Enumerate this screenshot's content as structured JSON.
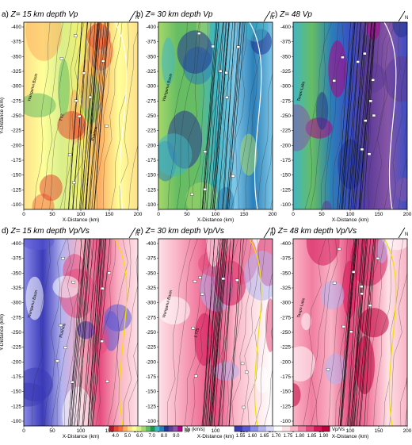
{
  "panels": [
    {
      "id": "a",
      "label": "a)",
      "z_prefix": "Z=",
      "depth": "15 km depth",
      "quantity": "Vp",
      "scheme": "vp",
      "row": 0,
      "col": 0,
      "annotations": [
        "Wanganui Basin",
        "TVZ",
        "Ruahine"
      ]
    },
    {
      "id": "b",
      "label": "b)",
      "z_prefix": "Z=",
      "depth": "30 km depth",
      "quantity": "Vp",
      "scheme": "vp",
      "row": 0,
      "col": 1,
      "annotations": [
        "Wanganui Basin"
      ]
    },
    {
      "id": "c",
      "label": "c)",
      "z_prefix": "Z=",
      "depth": "48",
      "quantity": "Vp",
      "scheme": "vp",
      "row": 0,
      "col": 2,
      "annotations": [
        "Taupo Lake"
      ]
    },
    {
      "id": "d",
      "label": "d)",
      "z_prefix": "Z=",
      "depth": "15 km depth",
      "quantity": "Vp/Vs",
      "scheme": "vpvs",
      "row": 1,
      "col": 0,
      "annotations": [
        "Wanganui Basin",
        "Ruahine"
      ]
    },
    {
      "id": "e",
      "label": "e)",
      "z_prefix": "Z=",
      "depth": "30 km depth",
      "quantity": "Vp/Vs",
      "scheme": "vpvs",
      "row": 1,
      "col": 1,
      "annotations": [
        "Wanganui Basin",
        "1.725"
      ]
    },
    {
      "id": "f",
      "label": "f)",
      "z_prefix": "Z=",
      "depth": "48 km depth",
      "quantity": "Vp/Vs",
      "scheme": "vpvs",
      "row": 1,
      "col": 2,
      "annotations": [
        "Taupo Lake"
      ]
    }
  ],
  "axes": {
    "x_label": "X-Distance (km)",
    "y_label": "Y-Distance (km)",
    "x_range": [
      0,
      200
    ],
    "y_range": [
      -400,
      -100
    ],
    "x_ticks": [
      "0",
      "50",
      "100",
      "150",
      "200"
    ],
    "y_ticks": [
      "-400",
      "-375",
      "-350",
      "-325",
      "-300",
      "-275",
      "-250",
      "-225",
      "-200",
      "-175",
      "-150",
      "-125",
      "-100"
    ],
    "north_label": "N"
  },
  "colorbars": {
    "vp": {
      "label": "Vp (km/s)",
      "ticks": [
        "4.0",
        "5.0",
        "6.0",
        "7.0",
        "8.0",
        "9.0"
      ],
      "colors": [
        "#b2182b",
        "#e34a33",
        "#f46d43",
        "#fdae61",
        "#fee08b",
        "#ffff99",
        "#d9ef8b",
        "#a6d96a",
        "#66bd63",
        "#1a9850",
        "#41b6c4",
        "#2c7fb8",
        "#253494",
        "#5e3c99",
        "#8856a7",
        "#b30086"
      ]
    },
    "vpvs": {
      "label": "Vp/Vs",
      "ticks": [
        "1.55",
        "1.60",
        "1.65",
        "1.70",
        "1.75",
        "1.80",
        "1.85",
        "1.90"
      ],
      "colors": [
        "#3b3bb8",
        "#5a5ad6",
        "#8a8ae8",
        "#b3b3f0",
        "#d9d9f7",
        "#ffffff",
        "#fde0e6",
        "#f9b4c6",
        "#f27fa2",
        "#e64a7d",
        "#d6175a",
        "#c0003a"
      ]
    }
  }
}
